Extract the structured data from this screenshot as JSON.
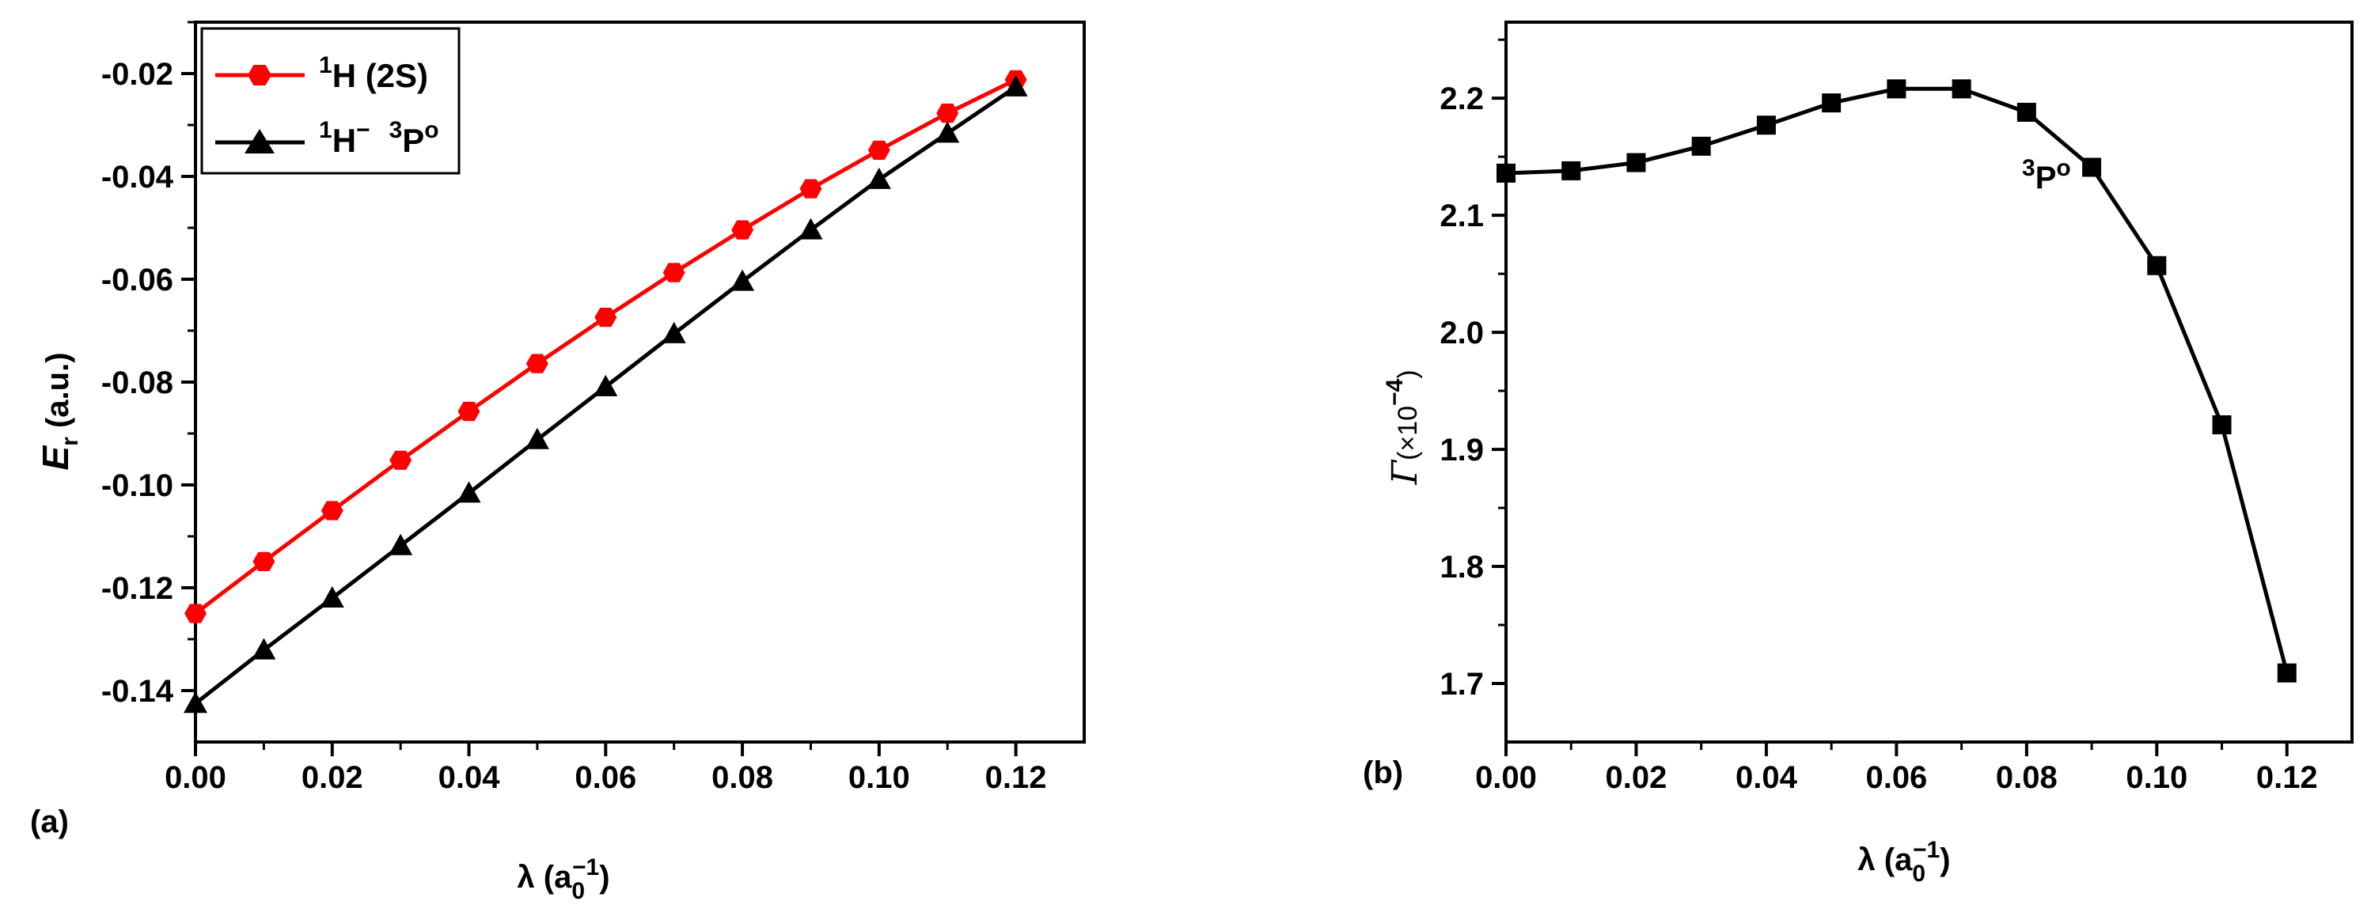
{
  "chart_data": [
    {
      "type": "line",
      "panel_label": "(a)",
      "x": [
        0.0,
        0.01,
        0.02,
        0.03,
        0.04,
        0.05,
        0.06,
        0.07,
        0.08,
        0.09,
        0.1,
        0.11,
        0.12
      ],
      "series": [
        {
          "name_base": "H (2S)",
          "name_superscript": "1",
          "color": "#ff0000",
          "marker": "hexagon",
          "values": [
            -0.125,
            -0.1149,
            -0.105,
            -0.0952,
            -0.0857,
            -0.0764,
            -0.0674,
            -0.0587,
            -0.0504,
            -0.0424,
            -0.0349,
            -0.0277,
            -0.0212
          ]
        },
        {
          "name_base": "H",
          "name_superscript": "1",
          "name_mid_superscript": "−",
          "name_state": "P",
          "name_state_pre_superscript": "3",
          "name_state_superscript": "o",
          "color": "#000000",
          "marker": "triangle",
          "values": [
            -0.1425,
            -0.1321,
            -0.122,
            -0.1118,
            -0.1016,
            -0.0912,
            -0.0809,
            -0.0706,
            -0.0604,
            -0.0504,
            -0.0406,
            -0.0316,
            -0.0226
          ]
        }
      ],
      "xlabel_base": "λ (a",
      "xlabel_sub": "0",
      "xlabel_sup": "−1",
      "xlabel_close": ")",
      "ylabel_base": "E",
      "ylabel_sub": "r",
      "ylabel_rest": " (a.u.)",
      "xlim": [
        0.0,
        0.13
      ],
      "ylim": [
        -0.15,
        -0.01
      ],
      "xticks": [
        "0.00",
        "0.02",
        "0.04",
        "0.06",
        "0.08",
        "0.10",
        "0.12"
      ],
      "yticks": [
        "-0.02",
        "-0.04",
        "-0.06",
        "-0.08",
        "-0.10",
        "-0.12",
        "-0.14"
      ],
      "legend_position": "top-left"
    },
    {
      "type": "line",
      "panel_label": "(b)",
      "x": [
        0.0,
        0.01,
        0.02,
        0.03,
        0.04,
        0.05,
        0.06,
        0.07,
        0.08,
        0.09,
        0.1,
        0.11,
        0.12
      ],
      "series": [
        {
          "color": "#000000",
          "marker": "square",
          "values": [
            2.136,
            2.138,
            2.145,
            2.159,
            2.177,
            2.196,
            2.208,
            2.208,
            2.188,
            2.141,
            2.057,
            1.921,
            1.709
          ]
        }
      ],
      "annotation_pre_superscript": "3",
      "annotation_base": "P",
      "annotation_superscript": "o",
      "xlabel_base": "λ (a",
      "xlabel_sub": "0",
      "xlabel_sup": "−1",
      "xlabel_close": ")",
      "ylabel_base": "Γ",
      "ylabel_paren": "(×10",
      "ylabel_sup": "−4",
      "ylabel_close": ")",
      "xlim": [
        0.0,
        0.13
      ],
      "ylim": [
        1.65,
        2.265
      ],
      "xticks": [
        "0.00",
        "0.02",
        "0.04",
        "0.06",
        "0.08",
        "0.10",
        "0.12"
      ],
      "yticks": [
        "1.7",
        "1.8",
        "1.9",
        "2.0",
        "2.1",
        "2.2"
      ]
    }
  ]
}
